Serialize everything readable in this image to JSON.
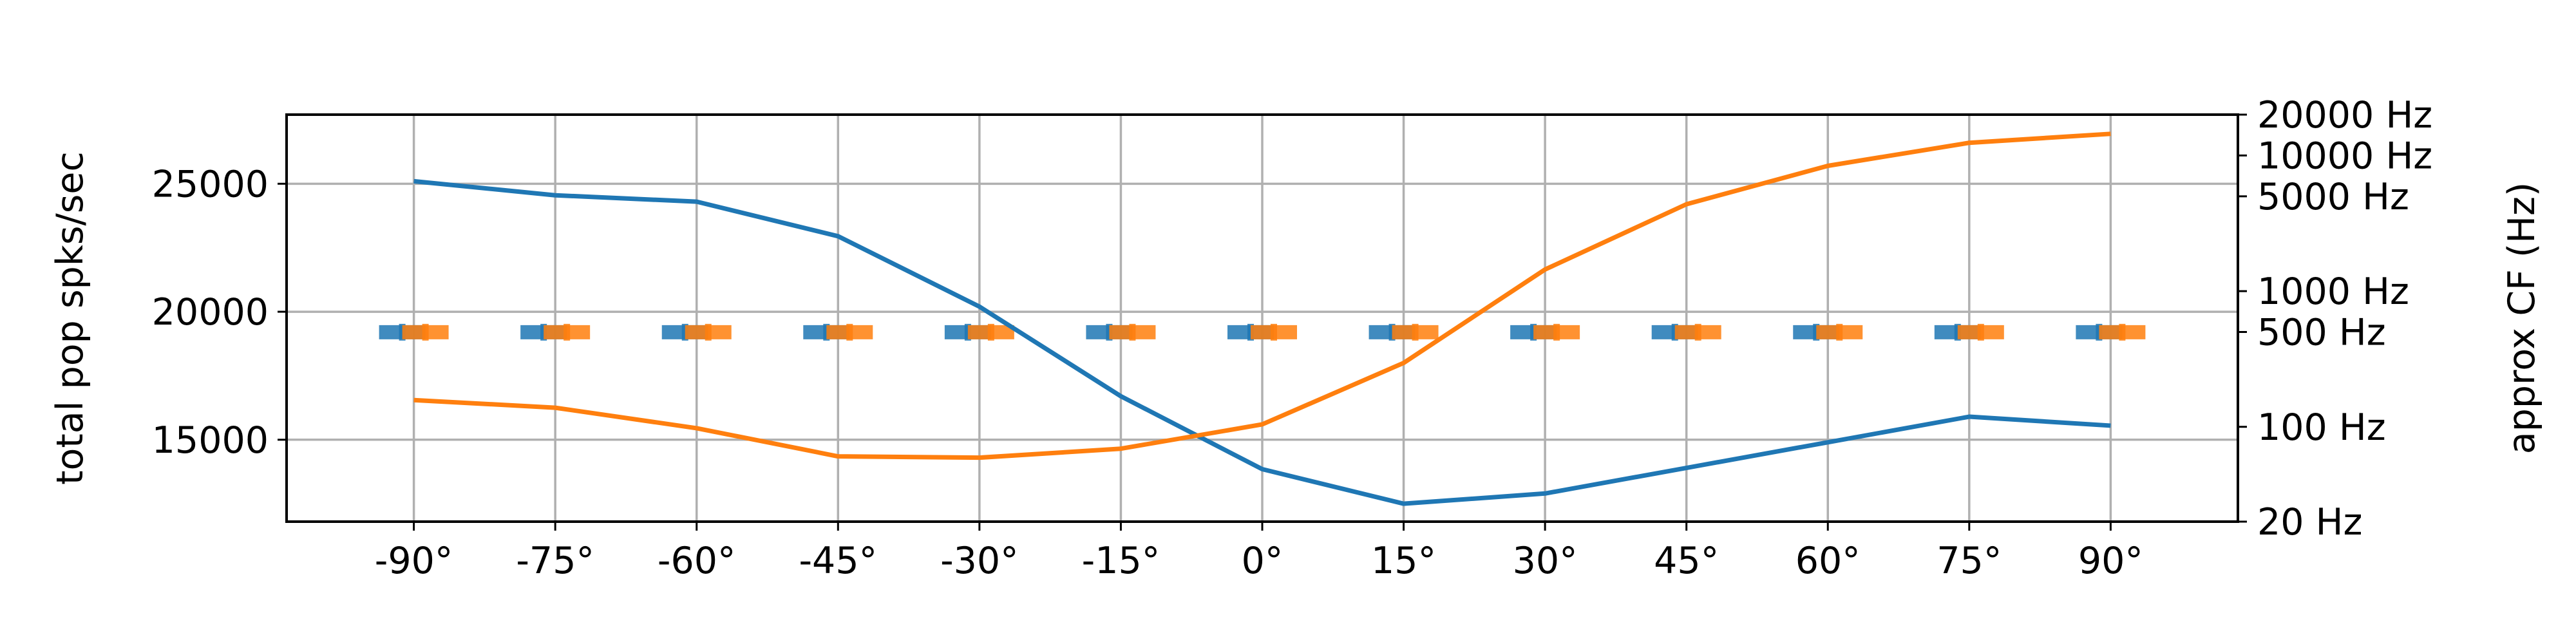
{
  "chart_data": {
    "type": "line",
    "x": [
      -90,
      -75,
      -60,
      -45,
      -30,
      -15,
      0,
      15,
      30,
      45,
      60,
      75,
      90
    ],
    "xticks": [
      "-90°",
      "-75°",
      "-60°",
      "-45°",
      "-30°",
      "-15°",
      "0°",
      "15°",
      "30°",
      "45°",
      "60°",
      "75°",
      "90°"
    ],
    "xlim": [
      -103.5,
      103.5
    ],
    "ylabel": "total pop spks/sec",
    "ylim": [
      11800,
      27700
    ],
    "yticks": [
      "15000",
      "20000",
      "25000"
    ],
    "y2label": "approx CF (Hz)",
    "y2ticks": [
      "20 Hz",
      "100 Hz",
      "500 Hz",
      "1000 Hz",
      "5000 Hz",
      "10000 Hz",
      "20000 Hz"
    ],
    "grid": true,
    "series": [
      {
        "color": "#1f77b4",
        "values": [
          25100,
          24550,
          24300,
          22950,
          20200,
          16700,
          13850,
          12500,
          12900,
          13900,
          14900,
          15900,
          15550
        ]
      },
      {
        "color": "#ff7f0e",
        "values": [
          16550,
          16250,
          15450,
          14350,
          14300,
          14650,
          15600,
          18000,
          21650,
          24200,
          25700,
          26600,
          26950
        ]
      }
    ],
    "markers": [
      {
        "color": "#1f77b4",
        "value": 19200
      },
      {
        "color": "#ff7f0e",
        "value": 19200
      }
    ]
  }
}
